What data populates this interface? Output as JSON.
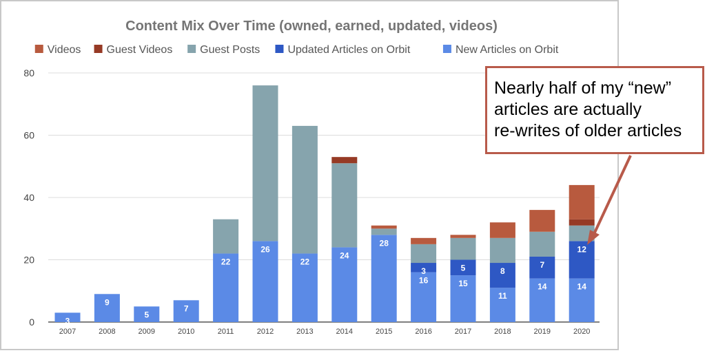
{
  "chart_data": {
    "type": "bar",
    "stacked": true,
    "title": "Content Mix Over Time (owned, earned, updated, videos)",
    "legend_position": "top",
    "categories": [
      "2007",
      "2008",
      "2009",
      "2010",
      "2011",
      "2012",
      "2013",
      "2014",
      "2015",
      "2016",
      "2017",
      "2018",
      "2019",
      "2020"
    ],
    "yticks": [
      "0",
      "20",
      "40",
      "60",
      "80"
    ],
    "ylim": [
      0,
      85
    ],
    "grid": true,
    "legend_order": [
      "Videos",
      "Guest Videos",
      "Guest Posts",
      "Updated Articles on Orbit",
      "New Articles on Orbit"
    ],
    "series": [
      {
        "name": "New Articles on Orbit",
        "color": "#5b8ae6",
        "values": [
          3,
          9,
          5,
          7,
          22,
          26,
          22,
          24,
          28,
          16,
          15,
          11,
          14,
          14
        ],
        "labels": [
          "3",
          "9",
          "5",
          "7",
          "22",
          "26",
          "22",
          "24",
          "28",
          "16",
          "15",
          "11",
          "14",
          "14"
        ]
      },
      {
        "name": "Updated Articles on Orbit",
        "color": "#2e58c4",
        "values": [
          0,
          0,
          0,
          0,
          0,
          0,
          0,
          0,
          0,
          3,
          5,
          8,
          7,
          12
        ],
        "labels": [
          "",
          "",
          "",
          "",
          "",
          "",
          "",
          "",
          "",
          "3",
          "5",
          "8",
          "7",
          "12"
        ]
      },
      {
        "name": "Guest Posts",
        "color": "#86a4ad",
        "values": [
          0,
          0,
          0,
          0,
          11,
          50,
          41,
          27,
          2,
          6,
          7,
          8,
          8,
          5
        ],
        "labels": []
      },
      {
        "name": "Guest Videos",
        "color": "#963a25",
        "values": [
          0,
          0,
          0,
          0,
          0,
          0,
          0,
          2,
          0,
          0,
          0,
          0,
          0,
          2
        ],
        "labels": []
      },
      {
        "name": "Videos",
        "color": "#b85a3e",
        "values": [
          0,
          0,
          0,
          0,
          0,
          0,
          0,
          0,
          1,
          2,
          1,
          5,
          7,
          11
        ],
        "labels": []
      }
    ]
  },
  "callout": {
    "lines": [
      "Nearly half of my “new”",
      "articles are actually",
      "re-writes of older articles"
    ],
    "border_color": "#b85a4a",
    "arrow_color": "#b85a4a"
  }
}
